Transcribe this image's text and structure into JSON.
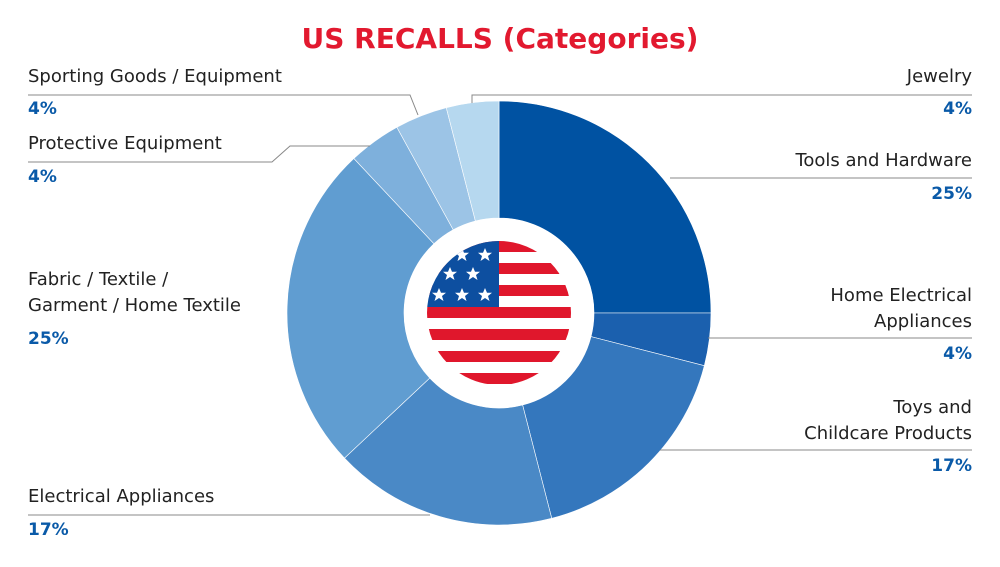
{
  "chart_data": {
    "type": "donut",
    "title": "US RECALLS (Categories)",
    "categories": [
      "Tools and Hardware",
      "Home Electrical\nAppliances",
      "Toys and\nChildcare Products",
      "Electrical Appliances",
      "Fabric / Textile /\nGarment / Home Textile",
      "Protective Equipment",
      "Sporting Goods / Equipment",
      "Jewelry"
    ],
    "values": [
      25,
      4,
      17,
      17,
      25,
      4,
      4,
      4
    ],
    "value_labels": [
      "25%",
      "4%",
      "17%",
      "17%",
      "25%",
      "4%",
      "4%",
      "4%"
    ],
    "colors": [
      "#0052a2",
      "#1b60ae",
      "#3477bd",
      "#4a89c6",
      "#609dd1",
      "#7eb0dc",
      "#9cc4e6",
      "#b6d8ef"
    ]
  }
}
